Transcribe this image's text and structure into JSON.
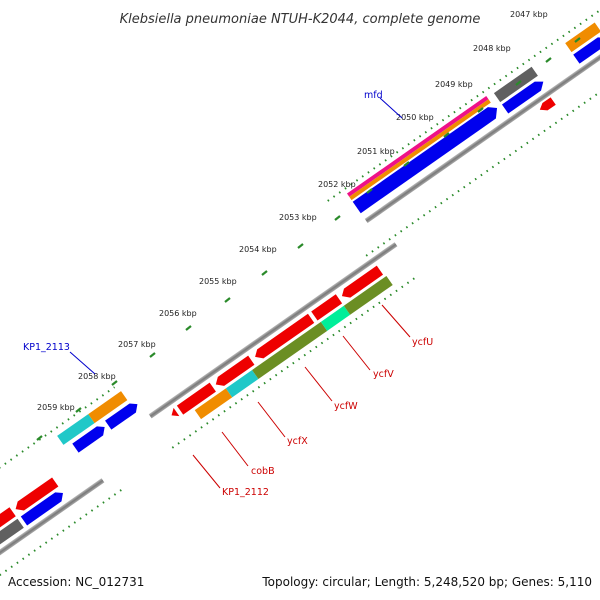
{
  "title": "Klebsiella pneumoniae NTUH-K2044, complete genome",
  "footer": {
    "accession": "Accession: NC_012731",
    "summary": "Topology: circular; Length: 5,248,520 bp; Genes: 5,110"
  },
  "kbp_labels": [
    "2047 kbp",
    "2048 kbp",
    "2049 kbp",
    "2050 kbp",
    "2051 kbp",
    "2052 kbp",
    "2053 kbp",
    "2054 kbp",
    "2055 kbp",
    "2056 kbp",
    "2057 kbp",
    "2058 kbp",
    "2059 kbp"
  ],
  "gene_labels": {
    "mfd": "mfd",
    "kp1_2113": "KP1_2113",
    "ycfU": "ycfU",
    "ycfV": "ycfV",
    "ycfW": "ycfW",
    "ycfX": "ycfX",
    "cobB": "cobB",
    "kp1_2112": "KP1_2112"
  },
  "colors": {
    "forward_cds": "#0000ee",
    "reverse_cds": "#ee0000",
    "orange": "#f08c00",
    "gray": "#606060",
    "cyan": "#20c8c8",
    "olive": "#6b8e23",
    "spring": "#00ee99",
    "magenta": "#ee1188",
    "backbone": "#888888",
    "tick": "#2a8a2a"
  }
}
